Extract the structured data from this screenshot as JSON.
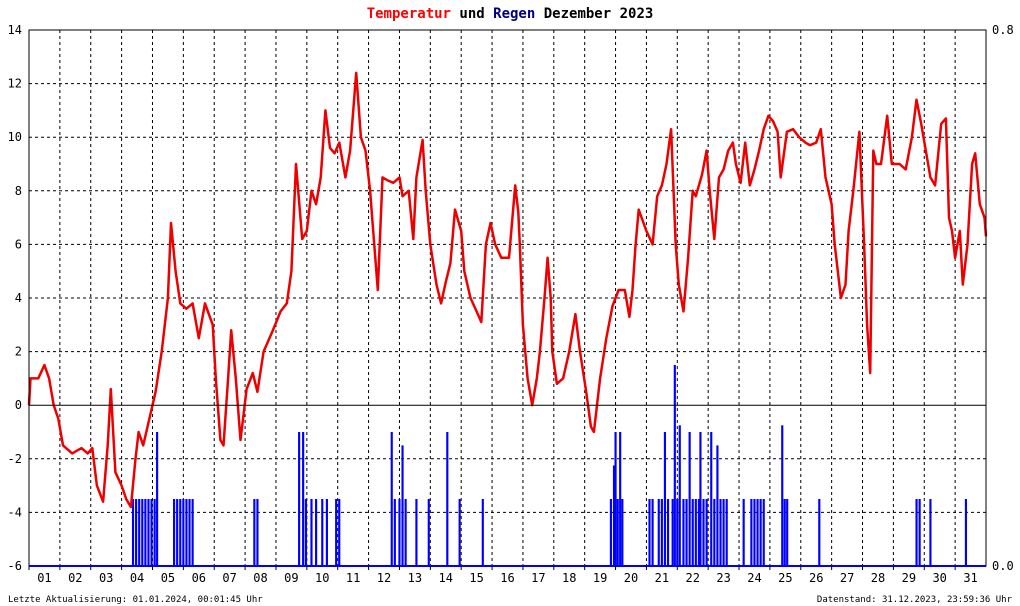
{
  "chart_data": {
    "type": "line",
    "title": {
      "parts": [
        {
          "text": "Temperatur",
          "color": "#ff0000"
        },
        {
          "text": " und ",
          "color": "#000000"
        },
        {
          "text": "Regen",
          "color": "#000080"
        },
        {
          "text": " Dezember 2023",
          "color": "#000000"
        }
      ]
    },
    "x": {
      "range": [
        1,
        32
      ],
      "ticks": [
        "01",
        "02",
        "03",
        "04",
        "05",
        "06",
        "07",
        "08",
        "09",
        "10",
        "11",
        "12",
        "13",
        "14",
        "15",
        "16",
        "17",
        "18",
        "19",
        "20",
        "21",
        "22",
        "23",
        "24",
        "25",
        "26",
        "27",
        "28",
        "29",
        "30",
        "31"
      ]
    },
    "y_left": {
      "range": [
        -6,
        14
      ],
      "ticks": [
        "14",
        "12",
        "10",
        "8",
        "6",
        "4",
        "2",
        "0",
        "-2",
        "-4",
        "-6"
      ]
    },
    "y_right": {
      "range": [
        0.0,
        0.8
      ],
      "tick_labels": [
        "0.8",
        "0.0"
      ]
    },
    "grid": true,
    "colors": {
      "temperature": "#ee0000",
      "rain": "#0000ff",
      "grid": "#000000",
      "zero_line": "#000000"
    },
    "series": [
      {
        "name": "Temperatur",
        "axis": "left",
        "style": "line",
        "points": [
          [
            1.0,
            0.0
          ],
          [
            1.05,
            1.0
          ],
          [
            1.3,
            1.0
          ],
          [
            1.5,
            1.5
          ],
          [
            1.65,
            1.0
          ],
          [
            1.8,
            0.0
          ],
          [
            1.95,
            -0.5
          ],
          [
            2.1,
            -1.5
          ],
          [
            2.4,
            -1.8
          ],
          [
            2.7,
            -1.6
          ],
          [
            2.9,
            -1.8
          ],
          [
            3.05,
            -1.6
          ],
          [
            3.2,
            -3.0
          ],
          [
            3.4,
            -3.6
          ],
          [
            3.55,
            -1.5
          ],
          [
            3.65,
            0.6
          ],
          [
            3.8,
            -2.5
          ],
          [
            4.0,
            -3.0
          ],
          [
            4.15,
            -3.5
          ],
          [
            4.3,
            -3.8
          ],
          [
            4.45,
            -2.0
          ],
          [
            4.55,
            -1.0
          ],
          [
            4.7,
            -1.5
          ],
          [
            4.9,
            -0.5
          ],
          [
            5.1,
            0.5
          ],
          [
            5.3,
            2.0
          ],
          [
            5.5,
            4.0
          ],
          [
            5.6,
            6.8
          ],
          [
            5.75,
            5.0
          ],
          [
            5.9,
            3.8
          ],
          [
            6.1,
            3.6
          ],
          [
            6.3,
            3.8
          ],
          [
            6.5,
            2.5
          ],
          [
            6.7,
            3.8
          ],
          [
            6.95,
            3.0
          ],
          [
            7.05,
            1.0
          ],
          [
            7.2,
            -1.3
          ],
          [
            7.3,
            -1.5
          ],
          [
            7.45,
            1.0
          ],
          [
            7.55,
            2.8
          ],
          [
            7.7,
            1.0
          ],
          [
            7.85,
            -1.3
          ],
          [
            8.05,
            0.6
          ],
          [
            8.25,
            1.2
          ],
          [
            8.4,
            0.5
          ],
          [
            8.6,
            2.0
          ],
          [
            8.9,
            2.8
          ],
          [
            9.15,
            3.5
          ],
          [
            9.35,
            3.8
          ],
          [
            9.5,
            5.0
          ],
          [
            9.65,
            9.0
          ],
          [
            9.85,
            6.2
          ],
          [
            10.0,
            6.5
          ],
          [
            10.15,
            8.0
          ],
          [
            10.3,
            7.5
          ],
          [
            10.45,
            8.5
          ],
          [
            10.6,
            11.0
          ],
          [
            10.75,
            9.6
          ],
          [
            10.9,
            9.4
          ],
          [
            11.05,
            9.8
          ],
          [
            11.25,
            8.5
          ],
          [
            11.4,
            9.5
          ],
          [
            11.6,
            12.4
          ],
          [
            11.75,
            10.0
          ],
          [
            11.9,
            9.5
          ],
          [
            12.05,
            8.0
          ],
          [
            12.15,
            6.5
          ],
          [
            12.3,
            4.3
          ],
          [
            12.45,
            8.5
          ],
          [
            12.6,
            8.4
          ],
          [
            12.8,
            8.3
          ],
          [
            13.0,
            8.5
          ],
          [
            13.1,
            7.8
          ],
          [
            13.3,
            8.0
          ],
          [
            13.45,
            6.2
          ],
          [
            13.55,
            8.5
          ],
          [
            13.75,
            9.9
          ],
          [
            13.85,
            8.0
          ],
          [
            14.0,
            6.0
          ],
          [
            14.2,
            4.5
          ],
          [
            14.35,
            3.8
          ],
          [
            14.5,
            4.6
          ],
          [
            14.65,
            5.3
          ],
          [
            14.8,
            7.3
          ],
          [
            15.0,
            6.5
          ],
          [
            15.1,
            5.0
          ],
          [
            15.3,
            4.0
          ],
          [
            15.5,
            3.5
          ],
          [
            15.65,
            3.1
          ],
          [
            15.8,
            6.0
          ],
          [
            15.95,
            6.8
          ],
          [
            16.1,
            6.0
          ],
          [
            16.3,
            5.5
          ],
          [
            16.55,
            5.5
          ],
          [
            16.75,
            8.2
          ],
          [
            16.85,
            7.2
          ],
          [
            16.9,
            6.0
          ],
          [
            17.0,
            3.0
          ],
          [
            17.15,
            1.0
          ],
          [
            17.3,
            0.0
          ],
          [
            17.45,
            1.0
          ],
          [
            17.55,
            2.0
          ],
          [
            17.7,
            4.0
          ],
          [
            17.8,
            5.5
          ],
          [
            17.9,
            4.0
          ],
          [
            17.95,
            2.0
          ],
          [
            18.1,
            0.8
          ],
          [
            18.3,
            1.0
          ],
          [
            18.5,
            2.0
          ],
          [
            18.7,
            3.4
          ],
          [
            18.85,
            2.0
          ],
          [
            19.05,
            0.5
          ],
          [
            19.2,
            -0.8
          ],
          [
            19.3,
            -1.0
          ],
          [
            19.5,
            1.0
          ],
          [
            19.7,
            2.5
          ],
          [
            19.9,
            3.7
          ],
          [
            20.1,
            4.3
          ],
          [
            20.3,
            4.3
          ],
          [
            20.45,
            3.3
          ],
          [
            20.55,
            4.3
          ],
          [
            20.65,
            6.0
          ],
          [
            20.75,
            7.3
          ],
          [
            21.0,
            6.5
          ],
          [
            21.2,
            6.0
          ],
          [
            21.35,
            7.8
          ],
          [
            21.5,
            8.2
          ],
          [
            21.65,
            9.0
          ],
          [
            21.8,
            10.3
          ],
          [
            21.95,
            6.0
          ],
          [
            22.05,
            4.5
          ],
          [
            22.2,
            3.5
          ],
          [
            22.35,
            5.5
          ],
          [
            22.5,
            8.0
          ],
          [
            22.6,
            7.8
          ],
          [
            22.8,
            8.6
          ],
          [
            22.95,
            9.5
          ],
          [
            23.05,
            8.0
          ],
          [
            23.2,
            6.2
          ],
          [
            23.35,
            8.5
          ],
          [
            23.5,
            8.8
          ],
          [
            23.65,
            9.5
          ],
          [
            23.8,
            9.8
          ],
          [
            23.9,
            9.0
          ],
          [
            24.05,
            8.3
          ],
          [
            24.2,
            9.8
          ],
          [
            24.35,
            8.2
          ],
          [
            24.5,
            8.8
          ],
          [
            24.65,
            9.5
          ],
          [
            24.8,
            10.3
          ],
          [
            24.95,
            10.8
          ],
          [
            25.1,
            10.6
          ],
          [
            25.25,
            10.2
          ],
          [
            25.35,
            8.5
          ],
          [
            25.55,
            10.2
          ],
          [
            25.75,
            10.3
          ],
          [
            25.95,
            10.0
          ],
          [
            26.15,
            9.8
          ],
          [
            26.3,
            9.7
          ],
          [
            26.5,
            9.8
          ],
          [
            26.65,
            10.3
          ],
          [
            26.8,
            8.5
          ],
          [
            27.0,
            7.5
          ],
          [
            27.1,
            6.0
          ],
          [
            27.3,
            4.0
          ],
          [
            27.45,
            4.5
          ],
          [
            27.55,
            6.5
          ],
          [
            27.7,
            8.0
          ],
          [
            27.9,
            10.2
          ],
          [
            28.05,
            6.0
          ],
          [
            28.15,
            3.0
          ],
          [
            28.25,
            1.2
          ],
          [
            28.35,
            9.5
          ],
          [
            28.45,
            9.0
          ],
          [
            28.6,
            9.0
          ],
          [
            28.8,
            10.8
          ],
          [
            28.95,
            9.0
          ],
          [
            29.2,
            9.0
          ],
          [
            29.4,
            8.8
          ],
          [
            29.6,
            10.0
          ],
          [
            29.75,
            11.4
          ],
          [
            29.9,
            10.5
          ],
          [
            30.05,
            9.5
          ],
          [
            30.2,
            8.5
          ],
          [
            30.35,
            8.2
          ],
          [
            30.55,
            10.5
          ],
          [
            30.7,
            10.7
          ],
          [
            30.8,
            7.0
          ],
          [
            30.9,
            6.5
          ],
          [
            31.0,
            5.5
          ],
          [
            31.15,
            6.5
          ],
          [
            31.25,
            4.5
          ],
          [
            31.4,
            6.0
          ],
          [
            31.55,
            9.0
          ],
          [
            31.65,
            9.4
          ],
          [
            31.8,
            7.5
          ],
          [
            31.95,
            7.0
          ],
          [
            32.0,
            6.3
          ]
        ]
      },
      {
        "name": "Regen",
        "axis": "right",
        "style": "bars",
        "bar_width_days": 0.07,
        "points": [
          [
            4.37,
            0.1
          ],
          [
            4.47,
            0.1
          ],
          [
            4.57,
            0.1
          ],
          [
            4.67,
            0.1
          ],
          [
            4.77,
            0.1
          ],
          [
            4.87,
            0.1
          ],
          [
            4.97,
            0.1
          ],
          [
            5.07,
            0.1
          ],
          [
            5.15,
            0.2
          ],
          [
            5.7,
            0.1
          ],
          [
            5.8,
            0.1
          ],
          [
            5.9,
            0.1
          ],
          [
            6.0,
            0.1
          ],
          [
            6.1,
            0.1
          ],
          [
            6.2,
            0.1
          ],
          [
            6.3,
            0.1
          ],
          [
            8.3,
            0.1
          ],
          [
            8.4,
            0.1
          ],
          [
            9.75,
            0.2
          ],
          [
            9.88,
            0.2
          ],
          [
            9.97,
            0.1
          ],
          [
            10.15,
            0.1
          ],
          [
            10.3,
            0.1
          ],
          [
            10.5,
            0.1
          ],
          [
            10.65,
            0.1
          ],
          [
            10.95,
            0.1
          ],
          [
            11.05,
            0.1
          ],
          [
            12.75,
            0.2
          ],
          [
            12.85,
            0.1
          ],
          [
            13.0,
            0.1
          ],
          [
            13.1,
            0.18
          ],
          [
            13.2,
            0.1
          ],
          [
            13.55,
            0.1
          ],
          [
            13.95,
            0.1
          ],
          [
            14.55,
            0.2
          ],
          [
            14.95,
            0.1
          ],
          [
            15.7,
            0.1
          ],
          [
            19.85,
            0.1
          ],
          [
            19.95,
            0.15
          ],
          [
            20.0,
            0.2
          ],
          [
            20.07,
            0.1
          ],
          [
            20.15,
            0.2
          ],
          [
            20.22,
            0.1
          ],
          [
            21.1,
            0.1
          ],
          [
            21.2,
            0.1
          ],
          [
            21.4,
            0.1
          ],
          [
            21.5,
            0.1
          ],
          [
            21.6,
            0.2
          ],
          [
            21.7,
            0.1
          ],
          [
            21.85,
            0.1
          ],
          [
            21.92,
            0.3
          ],
          [
            22.0,
            0.1
          ],
          [
            22.08,
            0.21
          ],
          [
            22.2,
            0.1
          ],
          [
            22.3,
            0.1
          ],
          [
            22.4,
            0.2
          ],
          [
            22.5,
            0.1
          ],
          [
            22.6,
            0.1
          ],
          [
            22.7,
            0.1
          ],
          [
            22.75,
            0.2
          ],
          [
            22.85,
            0.1
          ],
          [
            22.95,
            0.1
          ],
          [
            23.1,
            0.2
          ],
          [
            23.2,
            0.1
          ],
          [
            23.3,
            0.18
          ],
          [
            23.4,
            0.1
          ],
          [
            23.5,
            0.1
          ],
          [
            23.6,
            0.1
          ],
          [
            24.15,
            0.1
          ],
          [
            24.4,
            0.1
          ],
          [
            24.5,
            0.1
          ],
          [
            24.6,
            0.1
          ],
          [
            24.7,
            0.1
          ],
          [
            24.8,
            0.1
          ],
          [
            25.4,
            0.21
          ],
          [
            25.48,
            0.1
          ],
          [
            25.56,
            0.1
          ],
          [
            26.6,
            0.1
          ],
          [
            29.75,
            0.1
          ],
          [
            29.85,
            0.1
          ],
          [
            30.2,
            0.1
          ],
          [
            31.35,
            0.1
          ]
        ]
      }
    ],
    "footer": {
      "left": "Letzte Aktualisierung: 01.01.2024, 00:01:45 Uhr",
      "right": "Datenstand: 31.12.2023, 23:59:36 Uhr"
    }
  }
}
